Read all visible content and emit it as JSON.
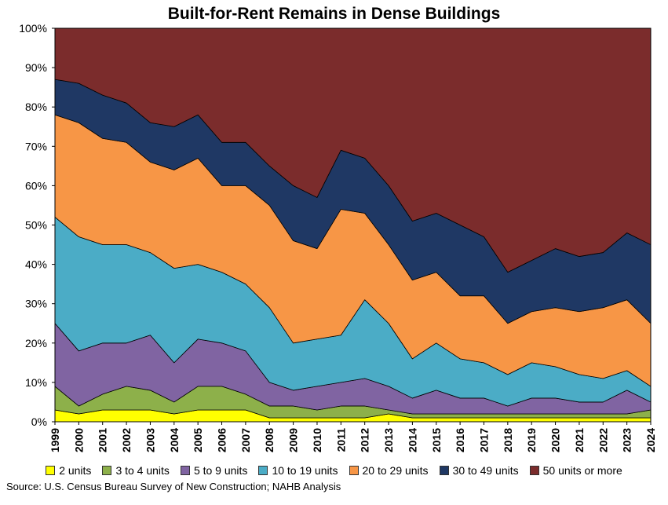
{
  "chart_data": {
    "type": "area",
    "stacked": true,
    "percent": true,
    "title": "Built-for-Rent Remains in Dense Buildings",
    "xlabel": "",
    "ylabel": "",
    "ylim": [
      0,
      100
    ],
    "y_ticks": [
      "0%",
      "10%",
      "20%",
      "30%",
      "40%",
      "50%",
      "60%",
      "70%",
      "80%",
      "90%",
      "100%"
    ],
    "grid": false,
    "legend_position": "bottom",
    "x": [
      "1999",
      "2000",
      "2001",
      "2002",
      "2003",
      "2004",
      "2005",
      "2006",
      "2007",
      "2008",
      "2009",
      "2010",
      "2011",
      "2012",
      "2013",
      "2014",
      "2015",
      "2016",
      "2017",
      "2018",
      "2019",
      "2020",
      "2021",
      "2022",
      "2023",
      "2024"
    ],
    "series": [
      {
        "name": "2 units",
        "color": "#ffff00",
        "values": [
          3,
          2,
          3,
          3,
          3,
          2,
          3,
          3,
          3,
          1,
          1,
          1,
          1,
          1,
          2,
          1,
          1,
          1,
          1,
          1,
          1,
          1,
          1,
          1,
          1,
          1
        ]
      },
      {
        "name": "3 to 4 units",
        "color": "#8db04a",
        "values": [
          6,
          2,
          4,
          6,
          5,
          3,
          6,
          6,
          4,
          3,
          3,
          2,
          3,
          3,
          1,
          1,
          1,
          1,
          1,
          1,
          1,
          1,
          1,
          1,
          1,
          2
        ]
      },
      {
        "name": "5 to 9 units",
        "color": "#8064a2",
        "values": [
          16,
          14,
          13,
          11,
          14,
          10,
          12,
          11,
          11,
          6,
          4,
          6,
          6,
          7,
          6,
          4,
          6,
          4,
          4,
          2,
          4,
          4,
          3,
          3,
          6,
          2
        ]
      },
      {
        "name": "10 to 19 units",
        "color": "#4bacc6",
        "values": [
          27,
          29,
          25,
          25,
          21,
          24,
          19,
          18,
          17,
          19,
          12,
          12,
          12,
          20,
          16,
          10,
          12,
          10,
          9,
          8,
          9,
          8,
          7,
          6,
          5,
          4
        ]
      },
      {
        "name": "20 to 29 units",
        "color": "#f79646",
        "values": [
          26,
          29,
          27,
          26,
          23,
          25,
          27,
          22,
          25,
          26,
          26,
          23,
          32,
          22,
          20,
          20,
          18,
          16,
          17,
          13,
          13,
          15,
          16,
          18,
          18,
          16
        ]
      },
      {
        "name": "30 to 49 units",
        "color": "#1f3864",
        "values": [
          9,
          10,
          11,
          10,
          10,
          11,
          11,
          11,
          11,
          10,
          14,
          13,
          15,
          14,
          15,
          15,
          15,
          18,
          15,
          13,
          13,
          15,
          14,
          14,
          17,
          20
        ]
      },
      {
        "name": "50 units or more",
        "color": "#7b2c2c",
        "values": [
          13,
          14,
          17,
          19,
          24,
          25,
          22,
          29,
          29,
          35,
          40,
          43,
          31,
          33,
          40,
          49,
          47,
          50,
          53,
          62,
          59,
          56,
          58,
          57,
          52,
          55
        ]
      }
    ]
  },
  "source": "Source: U.S. Census Bureau Survey of New Construction; NAHB Analysis"
}
